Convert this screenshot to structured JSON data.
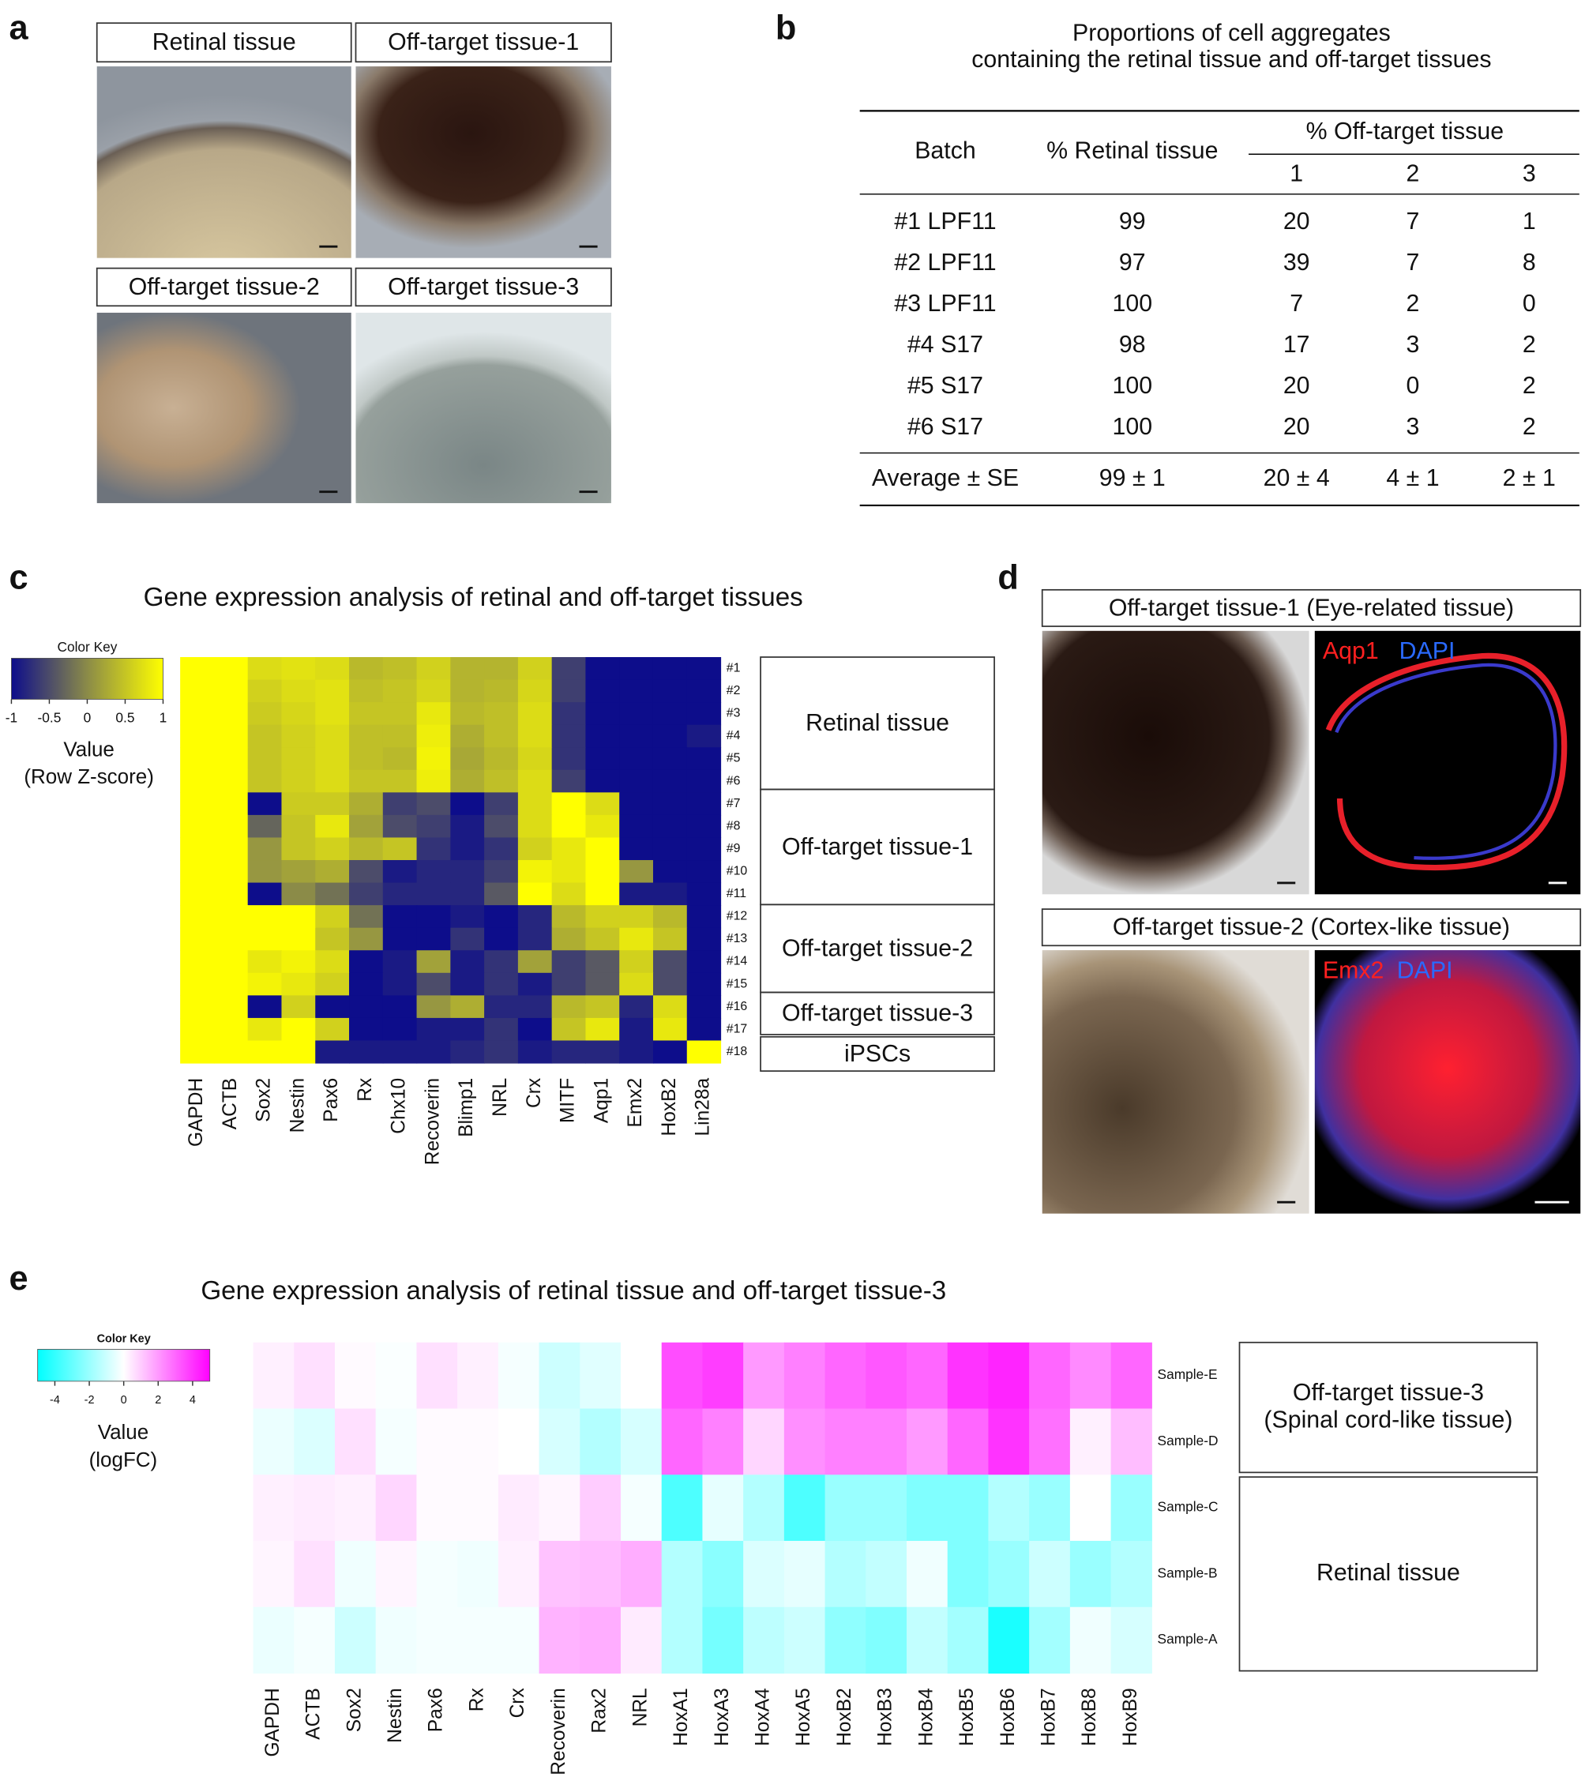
{
  "panel_labels": [
    "a",
    "b",
    "c",
    "d",
    "e"
  ],
  "panel_a": {
    "images": [
      "Retinal tissue",
      "Off-target tissue-1",
      "Off-target tissue-2",
      "Off-target tissue-3"
    ]
  },
  "panel_b": {
    "title": [
      "Proportions of cell aggregates",
      "containing the retinal tissue and off-target tissues"
    ],
    "header": {
      "batch": "Batch",
      "retinal": "% Retinal tissue",
      "off_target": "% Off-target tissue",
      "sub": [
        1,
        2,
        3
      ]
    },
    "rows": [
      [
        "#1 LPF11",
        99,
        20,
        7,
        1
      ],
      [
        "#2 LPF11",
        97,
        39,
        7,
        8
      ],
      [
        "#3 LPF11",
        100,
        7,
        2,
        0
      ],
      [
        "#4 S17",
        98,
        17,
        3,
        2
      ],
      [
        "#5 S17",
        100,
        20,
        0,
        2
      ],
      [
        "#6 S17",
        100,
        20,
        3,
        2
      ]
    ],
    "average": [
      "Average ± SE",
      "99 ± 1",
      "20 ± 4",
      "4 ± 1",
      "2 ± 1"
    ]
  },
  "panel_c": {
    "type": "heatmap",
    "title": "Gene expression analysis of retinal and off-target tissues",
    "color_key": {
      "title": "Color Key",
      "label": [
        "Value",
        "(Row Z-score)"
      ],
      "lim": [
        -1,
        1
      ],
      "ticks": [
        -1,
        -0.5,
        0,
        0.5,
        1
      ],
      "colors": [
        "#0d0d8b",
        "#8b8b48",
        "#ffff00"
      ]
    },
    "columns": [
      "GAPDH",
      "ACTB",
      "Sox2",
      "Nestin",
      "Pax6",
      "Rx",
      "Chx10",
      "Recoverin",
      "Blimp1",
      "NRL",
      "Crx",
      "MITF",
      "Aqp1",
      "Emx2",
      "HoxB2",
      "Lin28a"
    ],
    "rows": [
      "#1",
      "#2",
      "#3",
      "#4",
      "#5",
      "#6",
      "#7",
      "#8",
      "#9",
      "#10",
      "#11",
      "#12",
      "#13",
      "#14",
      "#15",
      "#16",
      "#17",
      "#18"
    ],
    "values": [
      [
        1,
        1,
        0.7,
        0.75,
        0.7,
        0.4,
        0.45,
        0.6,
        0.35,
        0.35,
        0.6,
        -0.6,
        -1,
        -1,
        -1,
        -1
      ],
      [
        1,
        1,
        0.6,
        0.7,
        0.75,
        0.45,
        0.5,
        0.65,
        0.35,
        0.4,
        0.65,
        -0.6,
        -1,
        -1,
        -1,
        -1
      ],
      [
        1,
        1,
        0.55,
        0.65,
        0.75,
        0.5,
        0.5,
        0.8,
        0.4,
        0.45,
        0.7,
        -0.7,
        -1,
        -1,
        -1,
        -1
      ],
      [
        1,
        1,
        0.5,
        0.6,
        0.7,
        0.45,
        0.45,
        0.85,
        0.3,
        0.45,
        0.7,
        -0.7,
        -1,
        -1,
        -1,
        -0.9
      ],
      [
        1,
        1,
        0.5,
        0.6,
        0.7,
        0.45,
        0.4,
        0.9,
        0.25,
        0.4,
        0.65,
        -0.7,
        -1,
        -1,
        -1,
        -1
      ],
      [
        1,
        1,
        0.5,
        0.6,
        0.7,
        0.5,
        0.5,
        0.85,
        0.3,
        0.45,
        0.7,
        -0.6,
        -1,
        -1,
        -1,
        -1
      ],
      [
        1,
        1,
        -1,
        0.55,
        0.55,
        0.3,
        -0.6,
        -0.5,
        -1,
        -0.6,
        0.7,
        1,
        0.7,
        -1,
        -1,
        -1
      ],
      [
        1,
        1,
        -0.3,
        0.5,
        0.8,
        0.2,
        -0.5,
        -0.6,
        -0.9,
        -0.5,
        0.7,
        1,
        0.8,
        -1,
        -1,
        -1
      ],
      [
        1,
        1,
        0.1,
        0.5,
        0.6,
        0.4,
        0.5,
        -0.7,
        -0.9,
        -0.7,
        0.6,
        0.8,
        1,
        -1,
        -1,
        -1
      ],
      [
        1,
        1,
        0.1,
        0.2,
        0.3,
        -0.5,
        -0.9,
        -0.8,
        -0.8,
        -0.6,
        0.9,
        0.8,
        1,
        0.1,
        -1,
        -1
      ],
      [
        1,
        1,
        -1,
        0,
        -0.2,
        -0.6,
        -0.8,
        -0.8,
        -0.8,
        -0.4,
        1,
        0.7,
        1,
        -0.9,
        -0.9,
        -1
      ],
      [
        1,
        1,
        1,
        1,
        0.6,
        -0.2,
        -1,
        -1,
        -0.9,
        -1,
        -0.8,
        0.4,
        0.6,
        0.6,
        0.4,
        -1
      ],
      [
        1,
        1,
        1,
        1,
        0.5,
        0.1,
        -1,
        -1,
        -0.7,
        -1,
        -0.8,
        0.3,
        0.5,
        0.8,
        0.5,
        -1
      ],
      [
        1,
        1,
        0.8,
        0.9,
        0.7,
        -1,
        -0.9,
        0.2,
        -0.9,
        -0.7,
        0.2,
        -0.6,
        -0.4,
        0.6,
        -0.5,
        -1
      ],
      [
        1,
        1,
        0.9,
        0.8,
        0.6,
        -1,
        -0.9,
        -0.5,
        -0.9,
        -0.7,
        -0.9,
        -0.6,
        -0.4,
        0.7,
        -0.5,
        -1
      ],
      [
        1,
        1,
        -1,
        0.6,
        -1,
        -1,
        -1,
        0.1,
        0.3,
        -0.8,
        -0.8,
        0.4,
        0.5,
        -0.8,
        0.7,
        -1
      ],
      [
        1,
        1,
        0.8,
        1,
        0.6,
        -1,
        -1,
        -0.9,
        -0.9,
        -0.7,
        -1,
        0.5,
        0.8,
        -0.9,
        0.8,
        -1
      ],
      [
        1,
        1,
        1,
        1,
        -0.9,
        -0.9,
        -0.9,
        -0.9,
        -0.8,
        -0.7,
        -0.9,
        -0.8,
        -0.8,
        -0.9,
        -1,
        1
      ]
    ],
    "groups": [
      "Retinal tissue",
      "Off-target tissue-1",
      "Off-target tissue-2",
      "Off-target tissue-3",
      "iPSCs"
    ]
  },
  "panel_d": {
    "images": [
      {
        "title": "Off-target tissue-1 (Eye-related tissue)",
        "stains": [
          "Aqp1",
          "DAPI"
        ]
      },
      {
        "title": "Off-target tissue-2 (Cortex-like tissue)",
        "stains": [
          "Emx2",
          "DAPI"
        ]
      }
    ]
  },
  "panel_e": {
    "type": "heatmap",
    "title": "Gene expression analysis of retinal tissue and off-target tissue-3",
    "color_key": {
      "title": "Color Key",
      "label": [
        "Value",
        "(logFC)"
      ],
      "lim": [
        -5,
        5
      ],
      "ticks": [
        -4,
        -2,
        0,
        2,
        4
      ],
      "colors": [
        "#00ffff",
        "#ffffff",
        "#ff00ff"
      ]
    },
    "columns": [
      "GAPDH",
      "ACTB",
      "Sox2",
      "Nestin",
      "Pax6",
      "Rx",
      "Crx",
      "Recoverin",
      "Rax2",
      "NRL",
      "HoxA1",
      "HoxA3",
      "HoxA4",
      "HoxA5",
      "HoxB2",
      "HoxB3",
      "HoxB4",
      "HoxB5",
      "HoxB6",
      "HoxB7",
      "HoxB8",
      "HoxB9"
    ],
    "rows": [
      "Sample-E",
      "Sample-D",
      "Sample-C",
      "Sample-B",
      "Sample-A"
    ],
    "values": [
      [
        0.3,
        0.6,
        0.1,
        -0.1,
        0.6,
        0.3,
        -0.2,
        -1,
        -0.6,
        0,
        3.5,
        3.8,
        2,
        2.5,
        3,
        3.3,
        3,
        4,
        4.3,
        3,
        2.3,
        3
      ],
      [
        -0.4,
        -0.7,
        0.6,
        -0.2,
        0.1,
        0.1,
        0,
        -0.8,
        -1.5,
        -0.8,
        3,
        2.5,
        0.8,
        2.2,
        2.5,
        2.5,
        2,
        3,
        4,
        2.8,
        0.3,
        1.3
      ],
      [
        0.3,
        0.4,
        0.3,
        0.8,
        0.1,
        0.1,
        0.4,
        0.2,
        1,
        -0.2,
        -3.5,
        -0.5,
        -1.5,
        -3.5,
        -2,
        -2,
        -2.5,
        -2.5,
        -1.5,
        -2,
        0,
        -2
      ],
      [
        0.2,
        0.6,
        -0.3,
        0.2,
        -0.2,
        -0.3,
        0.3,
        1.2,
        1.3,
        1.6,
        -1.5,
        -2.3,
        -0.7,
        -0.5,
        -1.5,
        -1.2,
        -0.3,
        -2.5,
        -2,
        -1,
        -2,
        -1.5
      ],
      [
        -0.4,
        -0.2,
        -1,
        -0.3,
        -0.2,
        -0.2,
        -0.2,
        1.5,
        1.6,
        0.4,
        -1.5,
        -2.7,
        -1.3,
        -1,
        -2.2,
        -2.5,
        -1.2,
        -1.8,
        -4.5,
        -1.8,
        -0.3,
        -0.8
      ]
    ],
    "groups": [
      [
        "Off-target tissue-3",
        "(Spinal cord-like tissue)"
      ],
      [
        "Retinal tissue"
      ]
    ]
  }
}
